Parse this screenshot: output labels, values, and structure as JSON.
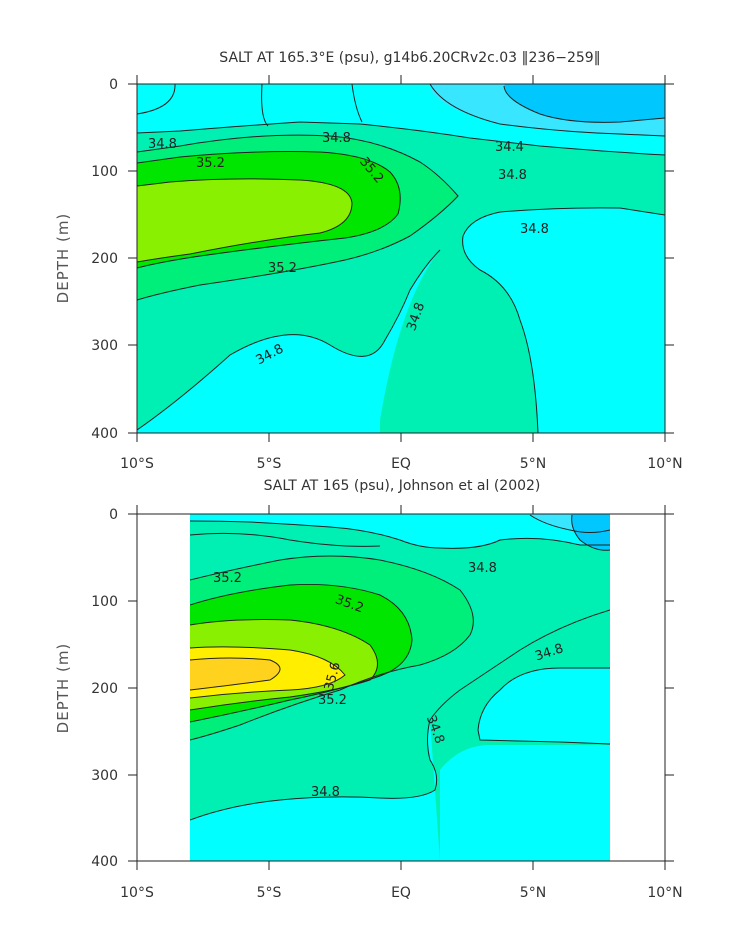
{
  "chart_data": [
    {
      "type": "contour",
      "title": "SALT AT 165.3°E (psu), g14b6.20CRv2c.03 ‖236−259‖",
      "ylabel": "DEPTH (m)",
      "xlabel": "",
      "x_ticks": [
        "10°S",
        "5°S",
        "EQ",
        "5°N",
        "10°N"
      ],
      "y_ticks": [
        "0",
        "100",
        "200",
        "300",
        "400"
      ],
      "xlim": [
        -10,
        10
      ],
      "ylim": [
        400,
        0
      ],
      "contour_labels": [
        {
          "text": "34.8",
          "lat": -8.8,
          "depth": 73
        },
        {
          "text": "34.8",
          "lat": -3.1,
          "depth": 66
        },
        {
          "text": "34.4",
          "lat": 3.5,
          "depth": 76
        },
        {
          "text": "34.8",
          "lat": 3.9,
          "depth": 107
        },
        {
          "text": "35.2",
          "lat": -6.5,
          "depth": 96
        },
        {
          "text": "35.2",
          "lat": -0.6,
          "depth": 106
        },
        {
          "text": "35.2",
          "lat": -3.9,
          "depth": 212
        },
        {
          "text": "34.8",
          "lat": 4.5,
          "depth": 170
        },
        {
          "text": "34.8",
          "lat": 0.5,
          "depth": 270
        },
        {
          "text": "34.8",
          "lat": -4.3,
          "depth": 312
        }
      ]
    },
    {
      "type": "contour",
      "title": "SALT AT 165 (psu), Johnson et al (2002)",
      "ylabel": "DEPTH (m)",
      "xlabel": "",
      "x_ticks": [
        "10°S",
        "5°S",
        "EQ",
        "5°N",
        "10°N"
      ],
      "y_ticks": [
        "0",
        "100",
        "200",
        "300",
        "400"
      ],
      "xlim": [
        -10,
        10
      ],
      "ylim": [
        400,
        0
      ],
      "data_extent_lat": [
        -8,
        8
      ],
      "contour_labels": [
        {
          "text": "35.2",
          "lat": -6.5,
          "depth": 75
        },
        {
          "text": "34.8",
          "lat": 2.0,
          "depth": 65
        },
        {
          "text": "35.2",
          "lat": -2.1,
          "depth": 100
        },
        {
          "text": "35.6",
          "lat": -2.5,
          "depth": 175
        },
        {
          "text": "34.8",
          "lat": 5.1,
          "depth": 152
        },
        {
          "text": "35.2",
          "lat": -3.5,
          "depth": 235
        },
        {
          "text": "34.8",
          "lat": 0.5,
          "depth": 280
        },
        {
          "text": "34.8",
          "lat": -2.8,
          "depth": 350
        }
      ]
    }
  ],
  "colors": {
    "s_lt_344": "#00c8ff",
    "s_344_346": "#38e6ff",
    "s_346_348": "#00ffff",
    "s_348_350": "#00f0b4",
    "s_350_352": "#00ee7a",
    "s_352_354": "#00e600",
    "s_354_356": "#88f000",
    "s_356_358": "#ffee00",
    "s_gt_358": "#ffd21e"
  }
}
